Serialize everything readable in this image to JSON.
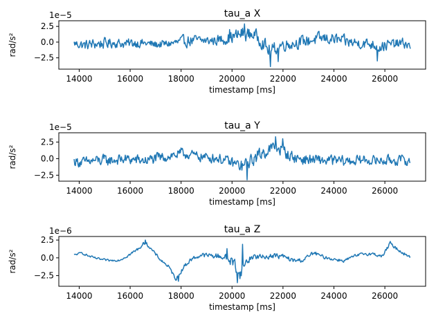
{
  "chart_data": [
    {
      "type": "line",
      "title": "tau_a X",
      "xlabel": "timestamp [ms]",
      "ylabel": "rad/s²",
      "offset_text": "1e−5",
      "xlim": [
        13200,
        27600
      ],
      "ylim": [
        -4.3,
        3.4
      ],
      "xticks": [
        14000,
        16000,
        18000,
        20000,
        22000,
        24000,
        26000
      ],
      "xtick_labels": [
        "14000",
        "16000",
        "18000",
        "20000",
        "22000",
        "24000",
        "26000"
      ],
      "yticks": [
        -2.5,
        0.0,
        2.5
      ],
      "ytick_labels": [
        "−2.5",
        "0.0",
        "2.5"
      ],
      "grid": false,
      "series": [
        {
          "color": "#1f77b4",
          "envelope": {
            "x": [
              13800,
              14200,
              14600,
              15000,
              15400,
              15800,
              16200,
              16600,
              17000,
              17400,
              17800,
              18200,
              18600,
              19000,
              19400,
              19800,
              20200,
              20400,
              20600,
              20800,
              21000,
              21200,
              21400,
              21600,
              21800,
              22000,
              22400,
              22800,
              23200,
              23600,
              24000,
              24400,
              24800,
              25200,
              25600,
              25800,
              26000,
              26400,
              26800,
              27000
            ],
            "mid": [
              -0.2,
              -0.5,
              -0.3,
              -0.2,
              -0.1,
              -0.3,
              -0.1,
              -0.2,
              -0.4,
              -0.3,
              -0.1,
              0.2,
              0.3,
              0.2,
              0.3,
              0.6,
              1.0,
              1.4,
              1.2,
              1.3,
              0.8,
              0.0,
              -1.2,
              -1.4,
              -0.6,
              -0.4,
              -0.2,
              0.1,
              0.4,
              0.6,
              0.5,
              0.1,
              -0.1,
              -0.2,
              -0.4,
              -0.8,
              -0.5,
              -0.3,
              -0.2,
              -0.8
            ],
            "amp": [
              0.9,
              1.1,
              1.2,
              1.2,
              1.0,
              1.0,
              1.1,
              0.9,
              0.9,
              0.9,
              1.0,
              1.3,
              1.1,
              1.0,
              1.1,
              1.3,
              1.5,
              1.6,
              1.5,
              1.4,
              1.4,
              1.5,
              1.6,
              1.6,
              1.4,
              1.3,
              1.3,
              1.3,
              1.4,
              1.3,
              1.3,
              1.3,
              1.2,
              1.2,
              1.2,
              1.3,
              1.2,
              1.1,
              1.1,
              0.8
            ]
          },
          "spikes": [
            [
              20500,
              2.9
            ],
            [
              21500,
              -3.9
            ],
            [
              21800,
              -3.1
            ],
            [
              25700,
              -3.0
            ],
            [
              19900,
              2.0
            ]
          ]
        }
      ]
    },
    {
      "type": "line",
      "title": "tau_a Y",
      "xlabel": "timestamp [ms]",
      "ylabel": "rad/s²",
      "offset_text": "1e−5",
      "xlim": [
        13200,
        27600
      ],
      "ylim": [
        -3.4,
        3.9
      ],
      "xticks": [
        14000,
        16000,
        18000,
        20000,
        22000,
        24000,
        26000
      ],
      "xtick_labels": [
        "14000",
        "16000",
        "18000",
        "20000",
        "22000",
        "24000",
        "26000"
      ],
      "yticks": [
        -2.5,
        0.0,
        2.5
      ],
      "ytick_labels": [
        "−2.5",
        "0.0",
        "2.5"
      ],
      "grid": false,
      "series": [
        {
          "color": "#1f77b4",
          "envelope": {
            "x": [
              13800,
              14200,
              14600,
              15000,
              15400,
              15800,
              16200,
              16600,
              17000,
              17400,
              17800,
              18200,
              18600,
              19000,
              19400,
              19800,
              20200,
              20400,
              20600,
              20800,
              21000,
              21200,
              21400,
              21600,
              21800,
              22000,
              22200,
              22400,
              22800,
              23200,
              23600,
              24000,
              24400,
              24800,
              25200,
              25600,
              26000,
              26400,
              26800,
              27000
            ],
            "mid": [
              -0.4,
              -0.6,
              -0.3,
              -0.3,
              -0.2,
              -0.1,
              -0.2,
              -0.3,
              0.0,
              0.3,
              0.6,
              0.7,
              0.4,
              0.2,
              0.1,
              -0.4,
              -0.9,
              -1.2,
              -0.7,
              -0.2,
              0.4,
              0.9,
              1.3,
              1.5,
              1.6,
              1.3,
              0.6,
              0.2,
              -0.1,
              -0.2,
              -0.3,
              -0.3,
              -0.4,
              -0.3,
              -0.2,
              -0.3,
              -0.3,
              -0.2,
              -0.3,
              -0.5
            ],
            "amp": [
              1.0,
              1.1,
              1.1,
              1.2,
              1.1,
              1.1,
              1.1,
              1.1,
              1.1,
              1.1,
              1.1,
              1.0,
              1.0,
              1.0,
              1.0,
              1.1,
              1.2,
              1.4,
              1.3,
              1.3,
              1.4,
              1.4,
              1.4,
              1.5,
              1.4,
              1.3,
              1.2,
              1.2,
              1.2,
              1.1,
              1.1,
              1.1,
              1.1,
              1.1,
              1.0,
              1.0,
              1.0,
              1.1,
              1.0,
              0.8
            ]
          },
          "spikes": [
            [
              20600,
              -3.2
            ],
            [
              21700,
              3.3
            ],
            [
              22000,
              3.0
            ],
            [
              18000,
              1.6
            ]
          ]
        }
      ]
    },
    {
      "type": "line",
      "title": "tau_a Z",
      "xlabel": "timestamp [ms]",
      "ylabel": "rad/s²",
      "offset_text": "1e−6",
      "xlim": [
        13200,
        27600
      ],
      "ylim": [
        -4.0,
        3.0
      ],
      "xticks": [
        14000,
        16000,
        18000,
        20000,
        22000,
        24000,
        26000
      ],
      "xtick_labels": [
        "14000",
        "16000",
        "18000",
        "20000",
        "22000",
        "24000",
        "26000"
      ],
      "yticks": [
        -2.5,
        0.0,
        2.5
      ],
      "ytick_labels": [
        "−2.5",
        "0.0",
        "2.5"
      ],
      "grid": false,
      "series": [
        {
          "color": "#1f77b4",
          "envelope": {
            "x": [
              13800,
              14100,
              14400,
              14800,
              15200,
              15600,
              16000,
              16300,
              16600,
              16900,
              17200,
              17500,
              17800,
              18100,
              18400,
              18800,
              19200,
              19600,
              19900,
              20100,
              20300,
              20500,
              20800,
              21200,
              21600,
              22000,
              22400,
              22800,
              23200,
              23600,
              24000,
              24400,
              24800,
              25200,
              25600,
              25900,
              26200,
              26500,
              26800,
              27000
            ],
            "mid": [
              0.4,
              0.7,
              0.2,
              -0.2,
              -0.4,
              -0.3,
              0.5,
              1.2,
              2.2,
              0.9,
              -0.3,
              -1.2,
              -3.0,
              -1.3,
              -0.2,
              0.4,
              0.3,
              0.2,
              -0.3,
              -0.8,
              -2.5,
              -0.8,
              0.2,
              0.1,
              0.3,
              0.2,
              -0.4,
              -0.3,
              0.7,
              0.1,
              -0.2,
              -0.4,
              0.2,
              0.6,
              0.5,
              0.2,
              2.0,
              1.2,
              0.5,
              0.1
            ],
            "amp": [
              0.15,
              0.2,
              0.2,
              0.2,
              0.2,
              0.2,
              0.3,
              0.3,
              0.3,
              0.3,
              0.3,
              0.3,
              0.3,
              0.4,
              0.4,
              0.4,
              0.5,
              0.6,
              0.9,
              1.2,
              1.0,
              0.9,
              0.6,
              0.5,
              0.5,
              0.5,
              0.4,
              0.4,
              0.4,
              0.3,
              0.3,
              0.3,
              0.3,
              0.3,
              0.3,
              0.3,
              0.3,
              0.3,
              0.3,
              0.2
            ]
          },
          "spikes": [
            [
              16600,
              2.5
            ],
            [
              17900,
              -3.3
            ],
            [
              20200,
              -3.5
            ],
            [
              20400,
              1.9
            ],
            [
              26200,
              2.3
            ],
            [
              19800,
              1.3
            ]
          ]
        }
      ]
    }
  ]
}
